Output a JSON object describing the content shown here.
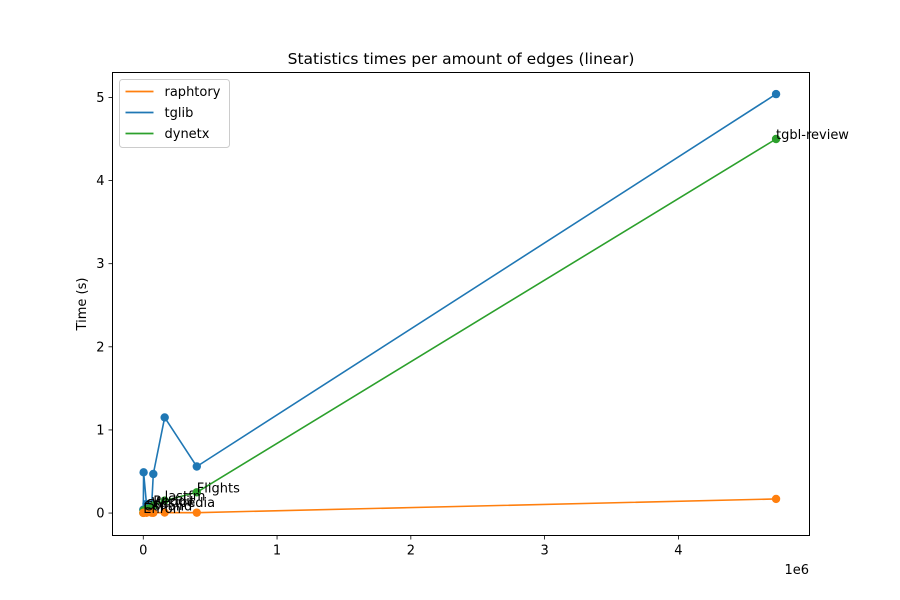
{
  "chart_data": {
    "type": "line",
    "title": "Statistics times per amount of edges (linear)",
    "xlabel": "",
    "ylabel": "Time (s)",
    "x_offset_label": "1e6",
    "xlim": [
      -230000,
      4980000
    ],
    "ylim": [
      -0.27,
      5.3
    ],
    "xticks": [
      0,
      1000000,
      2000000,
      3000000,
      4000000
    ],
    "xtick_labels": [
      "0",
      "1",
      "2",
      "3",
      "4"
    ],
    "yticks": [
      0,
      1,
      2,
      3,
      4,
      5
    ],
    "ytick_labels": [
      "0",
      "1",
      "2",
      "3",
      "4",
      "5"
    ],
    "grid": false,
    "legend_position": "top-left",
    "series": [
      {
        "name": "raphtory",
        "color": "#ff7f0e",
        "x": [
          200,
          2500,
          24000,
          63000,
          75000,
          160000,
          400000,
          4730000
        ],
        "y": [
          0.002,
          0.003,
          0.003,
          0.004,
          0.003,
          0.006,
          0.005,
          0.17
        ]
      },
      {
        "name": "tglib",
        "color": "#1f77b4",
        "x": [
          200,
          2500,
          24000,
          63000,
          75000,
          160000,
          400000,
          4730000
        ],
        "y": [
          0.04,
          0.49,
          0.11,
          0.1,
          0.47,
          1.15,
          0.56,
          5.04
        ]
      },
      {
        "name": "dynetx",
        "color": "#2ca02c",
        "x": [
          200,
          2500,
          24000,
          63000,
          75000,
          160000,
          400000,
          4730000
        ],
        "y": [
          0.003,
          0.03,
          0.05,
          0.07,
          0.09,
          0.15,
          0.25,
          4.5
        ]
      }
    ],
    "annotations": [
      {
        "text": "tgbl-review",
        "x": 4730000,
        "y": 4.5
      },
      {
        "text": "Flights",
        "x": 400000,
        "y": 0.25
      },
      {
        "text": "lastfm",
        "x": 160000,
        "y": 0.15
      },
      {
        "text": "Reddit",
        "x": 75000,
        "y": 0.09
      },
      {
        "text": "Wikipedia",
        "x": 63000,
        "y": 0.07
      },
      {
        "text": "Sfo",
        "x": 24000,
        "y": 0.05
      },
      {
        "text": "Colland",
        "x": 2500,
        "y": 0.03
      },
      {
        "text": "Enron",
        "x": 200,
        "y": 0.003
      }
    ]
  }
}
